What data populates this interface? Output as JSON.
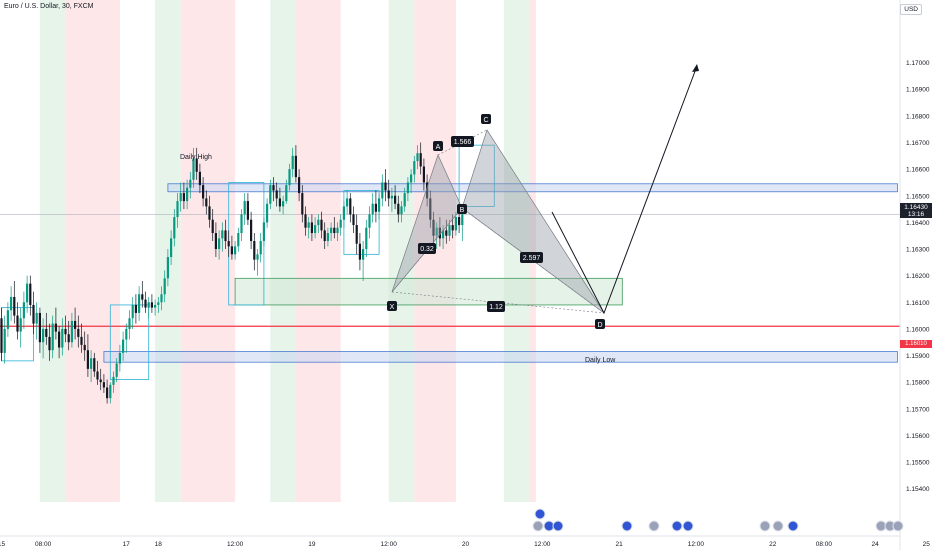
{
  "header": {
    "title": "Euro / U.S. Dollar, 30, FXCM",
    "currency": "USD"
  },
  "price_axis": {
    "current_price": "1.16430",
    "countdown": "13:16",
    "reference_price_label": "1.16010"
  },
  "annotations": {
    "daily_high": "Daily High",
    "daily_low": "Daily Low",
    "point_x": "X",
    "point_a": "A",
    "point_b": "B",
    "point_c": "C",
    "point_d": "D",
    "ratio_xb": "0.32",
    "ratio_ac": "1.566",
    "ratio_bd": "2.597",
    "ratio_xd": "1.12"
  },
  "colors": {
    "bull": "#089981",
    "bear": "#131722",
    "session_green": "#e6f4ea",
    "session_red": "#fde7e9",
    "zone_blue": "#4a7bd0",
    "zone_green": "#3f9a5a",
    "pattern_fill": "#9a9fa8",
    "accent_red": "#f23645"
  },
  "chart_data": {
    "type": "candlestick",
    "title": "Euro / U.S. Dollar, 30, FXCM",
    "ylim": [
      1.1535,
      1.1713
    ],
    "y_ticks": [
      "1.17000",
      "1.16900",
      "1.16800",
      "1.16700",
      "1.16600",
      "1.16500",
      "1.16400",
      "1.16300",
      "1.16200",
      "1.16100",
      "1.16000",
      "1.15900",
      "1.15800",
      "1.15700",
      "1.15600",
      "1.15500",
      "1.15400"
    ],
    "x_ticks": [
      {
        "label": "15",
        "i": 0
      },
      {
        "label": "08:00",
        "i": 13
      },
      {
        "label": "17",
        "i": 39
      },
      {
        "label": "18",
        "i": 49
      },
      {
        "label": "12:00",
        "i": 73
      },
      {
        "label": "19",
        "i": 97
      },
      {
        "label": "12:00",
        "i": 121
      },
      {
        "label": "20",
        "i": 145
      },
      {
        "label": "12:00",
        "i": 169
      },
      {
        "label": "21",
        "i": 193
      },
      {
        "label": "12:00",
        "i": 217
      },
      {
        "label": "22",
        "i": 241
      },
      {
        "label": "08:00",
        "i": 257
      },
      {
        "label": "24",
        "i": 273
      },
      {
        "label": "25",
        "i": 289
      },
      {
        "label": "12:00",
        "i": 313
      },
      {
        "label": "26",
        "i": 337
      }
    ],
    "candles": [
      [
        1.1604,
        1.1608,
        1.1588,
        1.1591
      ],
      [
        1.1591,
        1.1605,
        1.1587,
        1.16
      ],
      [
        1.16,
        1.161,
        1.1597,
        1.1607
      ],
      [
        1.1607,
        1.1616,
        1.1603,
        1.1612
      ],
      [
        1.1612,
        1.1618,
        1.1602,
        1.1605
      ],
      [
        1.1605,
        1.161,
        1.1596,
        1.1599
      ],
      [
        1.1599,
        1.1608,
        1.1593,
        1.1604
      ],
      [
        1.1604,
        1.1614,
        1.16,
        1.161
      ],
      [
        1.161,
        1.162,
        1.1606,
        1.1617
      ],
      [
        1.1617,
        1.162,
        1.1605,
        1.1609
      ],
      [
        1.1609,
        1.1614,
        1.1598,
        1.1602
      ],
      [
        1.1602,
        1.161,
        1.1596,
        1.1606
      ],
      [
        1.1606,
        1.1608,
        1.1591,
        1.1595
      ],
      [
        1.1595,
        1.1604,
        1.1589,
        1.16
      ],
      [
        1.16,
        1.1606,
        1.1594,
        1.1597
      ],
      [
        1.1597,
        1.1602,
        1.1588,
        1.1592
      ],
      [
        1.1592,
        1.1605,
        1.1589,
        1.1602
      ],
      [
        1.1602,
        1.1608,
        1.1596,
        1.1599
      ],
      [
        1.1599,
        1.1601,
        1.1589,
        1.1593
      ],
      [
        1.1593,
        1.1604,
        1.159,
        1.16
      ],
      [
        1.16,
        1.1605,
        1.1595,
        1.1598
      ],
      [
        1.1598,
        1.1603,
        1.1592,
        1.1595
      ],
      [
        1.1595,
        1.1606,
        1.1593,
        1.1603
      ],
      [
        1.1603,
        1.1608,
        1.1596,
        1.16
      ],
      [
        1.16,
        1.1605,
        1.1593,
        1.1597
      ],
      [
        1.1597,
        1.1602,
        1.1591,
        1.1594
      ],
      [
        1.1594,
        1.1599,
        1.1588,
        1.1592
      ],
      [
        1.1592,
        1.1598,
        1.1582,
        1.1585
      ],
      [
        1.1585,
        1.1592,
        1.158,
        1.1589
      ],
      [
        1.1589,
        1.1591,
        1.1582,
        1.1584
      ],
      [
        1.1584,
        1.1588,
        1.1579,
        1.1581
      ],
      [
        1.1581,
        1.1585,
        1.1577,
        1.158
      ],
      [
        1.158,
        1.1583,
        1.1576,
        1.1578
      ],
      [
        1.1578,
        1.1581,
        1.1572,
        1.1574
      ],
      [
        1.1574,
        1.158,
        1.1572,
        1.1579
      ],
      [
        1.1579,
        1.1584,
        1.1576,
        1.1582
      ],
      [
        1.1582,
        1.1589,
        1.158,
        1.1587
      ],
      [
        1.1587,
        1.1594,
        1.1584,
        1.1591
      ],
      [
        1.1591,
        1.1599,
        1.1588,
        1.1596
      ],
      [
        1.1596,
        1.1602,
        1.1591,
        1.16
      ],
      [
        1.16,
        1.1607,
        1.1596,
        1.1604
      ],
      [
        1.1604,
        1.1612,
        1.16,
        1.1609
      ],
      [
        1.1609,
        1.1613,
        1.1602,
        1.1606
      ],
      [
        1.1606,
        1.1616,
        1.1603,
        1.1613
      ],
      [
        1.1613,
        1.1618,
        1.1608,
        1.1611
      ],
      [
        1.1611,
        1.1614,
        1.1606,
        1.1608
      ],
      [
        1.1608,
        1.1612,
        1.1604,
        1.161
      ],
      [
        1.161,
        1.1613,
        1.1606,
        1.1608
      ],
      [
        1.1608,
        1.1611,
        1.1605,
        1.1609
      ],
      [
        1.1609,
        1.1612,
        1.1606,
        1.161
      ],
      [
        1.161,
        1.1616,
        1.1607,
        1.1613
      ],
      [
        1.1613,
        1.1622,
        1.161,
        1.1619
      ],
      [
        1.1619,
        1.163,
        1.1616,
        1.1627
      ],
      [
        1.1627,
        1.1637,
        1.1624,
        1.1634
      ],
      [
        1.1634,
        1.1645,
        1.1631,
        1.1642
      ],
      [
        1.1642,
        1.1651,
        1.1638,
        1.1648
      ],
      [
        1.1648,
        1.1655,
        1.1644,
        1.1651
      ],
      [
        1.1651,
        1.1655,
        1.1645,
        1.1648
      ],
      [
        1.1648,
        1.1656,
        1.1645,
        1.1653
      ],
      [
        1.1653,
        1.1659,
        1.1649,
        1.1656
      ],
      [
        1.1656,
        1.1668,
        1.1653,
        1.1664
      ],
      [
        1.1664,
        1.1668,
        1.1656,
        1.1659
      ],
      [
        1.1659,
        1.1662,
        1.1651,
        1.1654
      ],
      [
        1.1654,
        1.1657,
        1.1646,
        1.1649
      ],
      [
        1.1649,
        1.1652,
        1.1643,
        1.1646
      ],
      [
        1.1646,
        1.165,
        1.1638,
        1.1641
      ],
      [
        1.1641,
        1.1645,
        1.1633,
        1.1636
      ],
      [
        1.1636,
        1.164,
        1.1627,
        1.163
      ],
      [
        1.163,
        1.1637,
        1.1626,
        1.1634
      ],
      [
        1.1634,
        1.164,
        1.1629,
        1.1637
      ],
      [
        1.1637,
        1.1641,
        1.163,
        1.1633
      ],
      [
        1.1633,
        1.1637,
        1.1627,
        1.1631
      ],
      [
        1.1631,
        1.1635,
        1.1626,
        1.1628
      ],
      [
        1.1628,
        1.1633,
        1.1626,
        1.1631
      ],
      [
        1.1631,
        1.1638,
        1.1629,
        1.1636
      ],
      [
        1.1636,
        1.1645,
        1.1633,
        1.1643
      ],
      [
        1.1643,
        1.1651,
        1.1639,
        1.1648
      ],
      [
        1.1648,
        1.1651,
        1.1639,
        1.1641
      ],
      [
        1.1641,
        1.1644,
        1.163,
        1.1633
      ],
      [
        1.1633,
        1.1636,
        1.1622,
        1.1626
      ],
      [
        1.1626,
        1.163,
        1.162,
        1.1628
      ],
      [
        1.1628,
        1.1636,
        1.1625,
        1.1633
      ],
      [
        1.1633,
        1.1642,
        1.1631,
        1.164
      ],
      [
        1.164,
        1.1649,
        1.1638,
        1.1647
      ],
      [
        1.1647,
        1.1656,
        1.1645,
        1.1654
      ],
      [
        1.1654,
        1.1657,
        1.1648,
        1.1652
      ],
      [
        1.1652,
        1.1655,
        1.1646,
        1.1649
      ],
      [
        1.1649,
        1.1653,
        1.1644,
        1.1646
      ],
      [
        1.1646,
        1.165,
        1.1643,
        1.1648
      ],
      [
        1.1648,
        1.1656,
        1.1647,
        1.1654
      ],
      [
        1.1654,
        1.1662,
        1.1652,
        1.166
      ],
      [
        1.166,
        1.1668,
        1.1657,
        1.1665
      ],
      [
        1.1665,
        1.1669,
        1.1655,
        1.1657
      ],
      [
        1.1657,
        1.166,
        1.1648,
        1.1651
      ],
      [
        1.1651,
        1.1654,
        1.164,
        1.1643
      ],
      [
        1.1643,
        1.1646,
        1.1635,
        1.1638
      ],
      [
        1.1638,
        1.1642,
        1.1634,
        1.164
      ],
      [
        1.164,
        1.1643,
        1.1633,
        1.1636
      ],
      [
        1.1636,
        1.1642,
        1.1634,
        1.1639
      ],
      [
        1.1639,
        1.1643,
        1.1636,
        1.1641
      ],
      [
        1.1641,
        1.1644,
        1.1634,
        1.1637
      ],
      [
        1.1637,
        1.164,
        1.163,
        1.1633
      ],
      [
        1.1633,
        1.1638,
        1.1631,
        1.1636
      ],
      [
        1.1636,
        1.164,
        1.1633,
        1.1638
      ],
      [
        1.1638,
        1.1642,
        1.1634,
        1.1636
      ],
      [
        1.1636,
        1.164,
        1.1633,
        1.1638
      ],
      [
        1.1638,
        1.1643,
        1.1635,
        1.1641
      ],
      [
        1.1641,
        1.1648,
        1.1638,
        1.1646
      ],
      [
        1.1646,
        1.1652,
        1.1643,
        1.1649
      ],
      [
        1.1649,
        1.1651,
        1.164,
        1.1643
      ],
      [
        1.1643,
        1.1646,
        1.1636,
        1.1639
      ],
      [
        1.1639,
        1.1643,
        1.1628,
        1.1632
      ],
      [
        1.1632,
        1.1636,
        1.1622,
        1.1626
      ],
      [
        1.1626,
        1.1633,
        1.1618,
        1.163
      ],
      [
        1.163,
        1.1641,
        1.1627,
        1.1638
      ],
      [
        1.1638,
        1.1646,
        1.1634,
        1.1643
      ],
      [
        1.1643,
        1.1651,
        1.164,
        1.1647
      ],
      [
        1.1647,
        1.1652,
        1.164,
        1.1644
      ],
      [
        1.1644,
        1.1651,
        1.1641,
        1.1649
      ],
      [
        1.1649,
        1.1658,
        1.1646,
        1.1655
      ],
      [
        1.1655,
        1.166,
        1.1648,
        1.1652
      ],
      [
        1.1652,
        1.1656,
        1.1646,
        1.1649
      ],
      [
        1.1649,
        1.1653,
        1.1644,
        1.165
      ],
      [
        1.165,
        1.1654,
        1.1645,
        1.1647
      ],
      [
        1.1647,
        1.165,
        1.164,
        1.1643
      ],
      [
        1.1643,
        1.1648,
        1.164,
        1.1646
      ],
      [
        1.1646,
        1.1653,
        1.1644,
        1.1651
      ],
      [
        1.1651,
        1.1657,
        1.1648,
        1.1655
      ],
      [
        1.1655,
        1.166,
        1.1651,
        1.1658
      ],
      [
        1.1658,
        1.1665,
        1.1655,
        1.1663
      ],
      [
        1.1663,
        1.1669,
        1.166,
        1.1666
      ],
      [
        1.1666,
        1.167,
        1.1658,
        1.1661
      ],
      [
        1.1661,
        1.1664,
        1.1652,
        1.1655
      ],
      [
        1.1655,
        1.1658,
        1.1646,
        1.1649
      ],
      [
        1.1649,
        1.1652,
        1.1638,
        1.1641
      ],
      [
        1.1641,
        1.1644,
        1.1632,
        1.1635
      ],
      [
        1.1635,
        1.164,
        1.163,
        1.1638
      ],
      [
        1.1638,
        1.1642,
        1.1631,
        1.1634
      ],
      [
        1.1634,
        1.1639,
        1.163,
        1.1637
      ],
      [
        1.1637,
        1.1641,
        1.1632,
        1.1635
      ],
      [
        1.1635,
        1.1641,
        1.1633,
        1.1639
      ],
      [
        1.1639,
        1.1643,
        1.1634,
        1.1637
      ],
      [
        1.1637,
        1.1644,
        1.1635,
        1.1642
      ],
      [
        1.1642,
        1.1645,
        1.1636,
        1.1639
      ],
      [
        1.1639,
        1.1646,
        1.1633,
        1.1643
      ]
    ]
  }
}
